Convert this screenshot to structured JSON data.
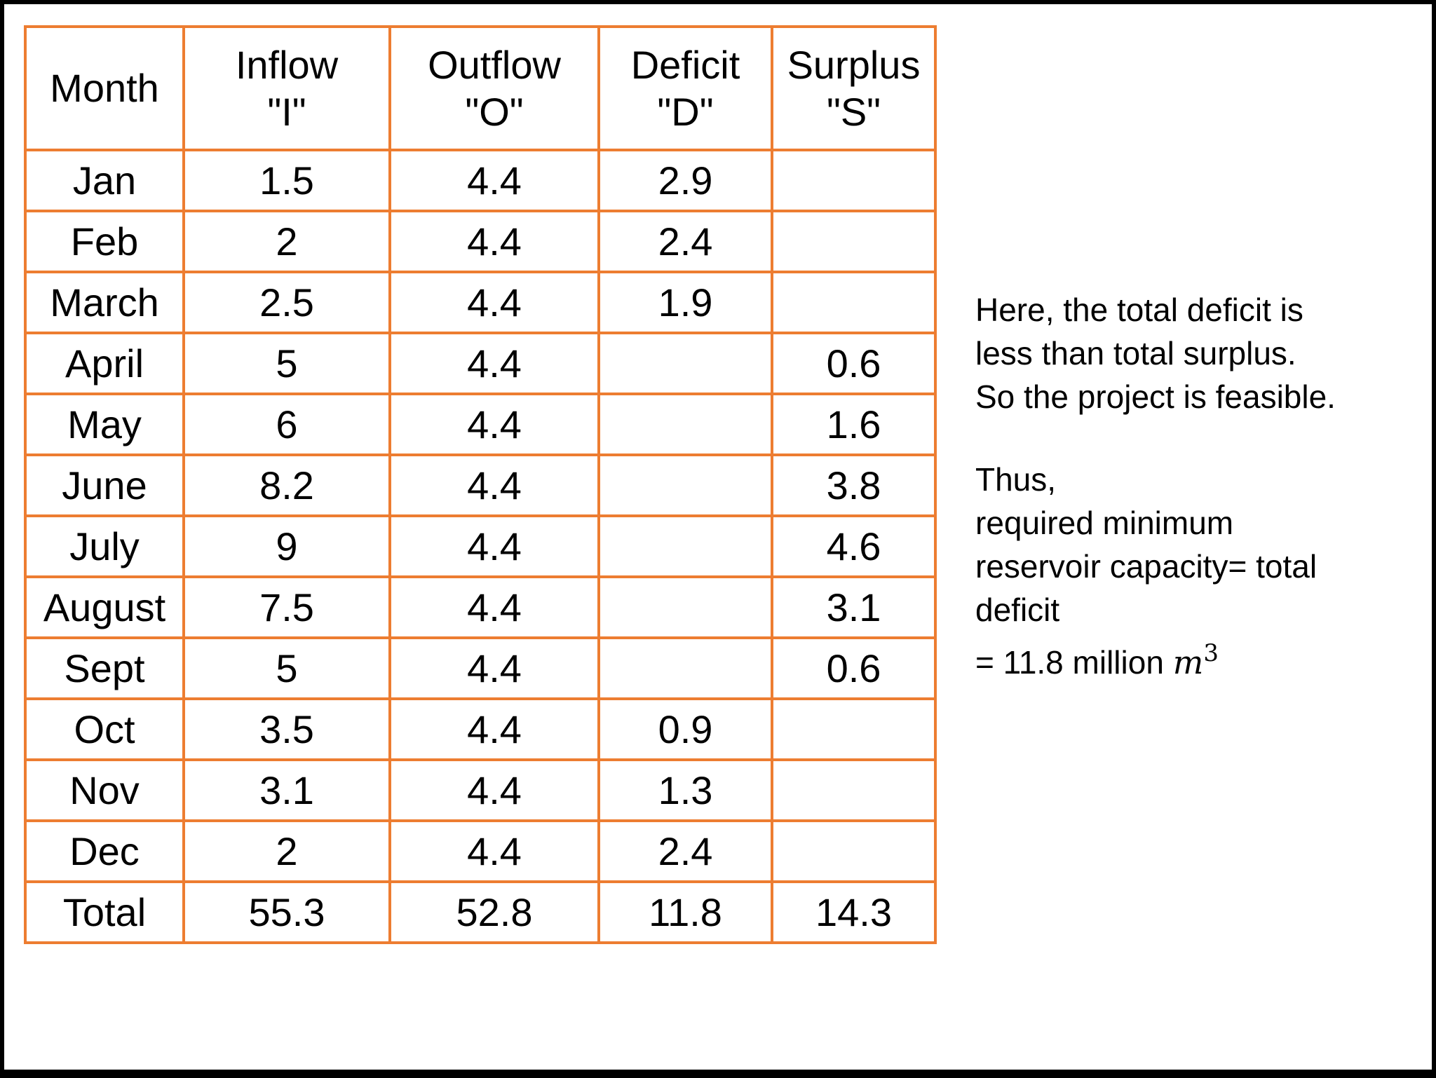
{
  "table": {
    "headers": [
      {
        "line1": "Month",
        "line2": ""
      },
      {
        "line1": "Inflow",
        "line2": "\"I\""
      },
      {
        "line1": "Outflow",
        "line2": "\"O\""
      },
      {
        "line1": "Deficit",
        "line2": "\"D\""
      },
      {
        "line1": "Surplus",
        "line2": "\"S\""
      }
    ],
    "rows": [
      {
        "month": "Jan",
        "inflow": "1.5",
        "outflow": "4.4",
        "deficit": "2.9",
        "surplus": ""
      },
      {
        "month": "Feb",
        "inflow": "2",
        "outflow": "4.4",
        "deficit": "2.4",
        "surplus": ""
      },
      {
        "month": "March",
        "inflow": "2.5",
        "outflow": "4.4",
        "deficit": "1.9",
        "surplus": ""
      },
      {
        "month": "April",
        "inflow": "5",
        "outflow": "4.4",
        "deficit": "",
        "surplus": "0.6"
      },
      {
        "month": "May",
        "inflow": "6",
        "outflow": "4.4",
        "deficit": "",
        "surplus": "1.6"
      },
      {
        "month": "June",
        "inflow": "8.2",
        "outflow": "4.4",
        "deficit": "",
        "surplus": "3.8"
      },
      {
        "month": "July",
        "inflow": "9",
        "outflow": "4.4",
        "deficit": "",
        "surplus": "4.6"
      },
      {
        "month": "August",
        "inflow": "7.5",
        "outflow": "4.4",
        "deficit": "",
        "surplus": "3.1"
      },
      {
        "month": "Sept",
        "inflow": "5",
        "outflow": "4.4",
        "deficit": "",
        "surplus": "0.6"
      },
      {
        "month": "Oct",
        "inflow": "3.5",
        "outflow": "4.4",
        "deficit": "0.9",
        "surplus": ""
      },
      {
        "month": "Nov",
        "inflow": "3.1",
        "outflow": "4.4",
        "deficit": "1.3",
        "surplus": ""
      },
      {
        "month": "Dec",
        "inflow": "2",
        "outflow": "4.4",
        "deficit": "2.4",
        "surplus": ""
      }
    ],
    "total": {
      "month": "Total",
      "inflow": "55.3",
      "outflow": "52.8",
      "deficit": "11.8",
      "surplus": "14.3"
    }
  },
  "notes": {
    "line1": "Here, the total deficit is",
    "line2": "less than total surplus.",
    "line3": "So the project is feasible.",
    "line4": "Thus,",
    "line5": "required minimum",
    "line6": "reservoir capacity= total",
    "line7": "deficit",
    "line8_prefix": "= 11.8 million ",
    "unit_var": "m",
    "unit_exp": "3"
  },
  "colors": {
    "border": "#ED7D31",
    "frame": "#000000",
    "background": "#FFFFFF"
  }
}
